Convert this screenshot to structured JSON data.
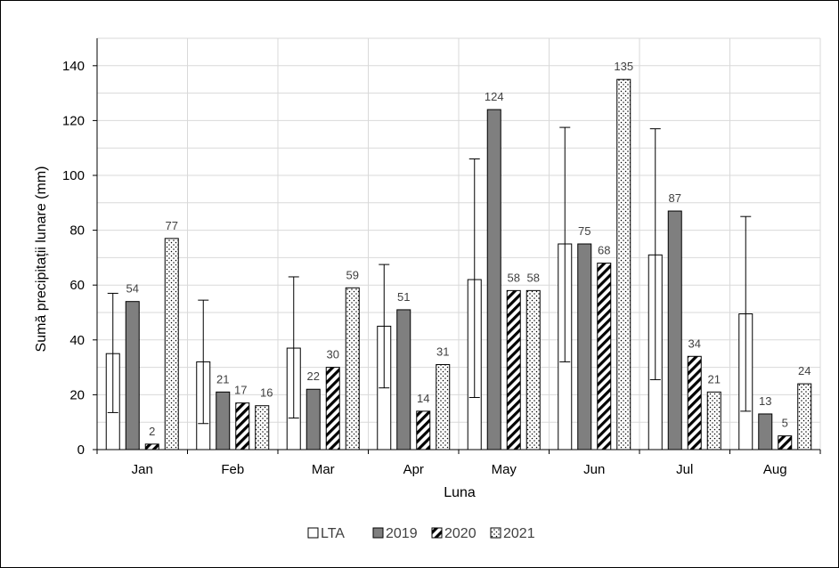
{
  "chart_data": {
    "type": "bar",
    "xlabel": "Luna",
    "ylabel": "Sumă precipitații lunare (mm)",
    "ylim": [
      0,
      150
    ],
    "yticks": [
      0,
      20,
      40,
      60,
      80,
      100,
      120,
      140
    ],
    "grid": true,
    "legend_position": "bottom",
    "categories": [
      "Jan",
      "Feb",
      "Mar",
      "Apr",
      "May",
      "Jun",
      "Jul",
      "Aug"
    ],
    "series": [
      {
        "name": "LTA",
        "values": [
          35,
          32,
          37,
          45,
          62,
          75,
          71,
          49.5
        ],
        "error_low": [
          13.5,
          9.5,
          11.5,
          22.5,
          19,
          32,
          25.5,
          14
        ],
        "error_high": [
          57,
          54.5,
          63,
          67.5,
          106,
          117.5,
          117,
          85
        ],
        "fill": "#ffffff",
        "pattern": "solid",
        "labels": [
          "",
          "",
          "",
          "",
          "",
          "",
          "",
          ""
        ]
      },
      {
        "name": "2019",
        "values": [
          54,
          21,
          22,
          51,
          124,
          75,
          87,
          13
        ],
        "fill": "#7f7f7f",
        "pattern": "solid",
        "labels": [
          "54",
          "21",
          "22",
          "51",
          "124",
          "75",
          "87",
          "13"
        ]
      },
      {
        "name": "2020",
        "values": [
          2,
          17,
          30,
          14,
          58,
          68,
          34,
          5
        ],
        "fill": "#ffffff",
        "pattern": "diagonal-stripes",
        "labels": [
          "2",
          "17",
          "30",
          "14",
          "58",
          "68",
          "34",
          "5"
        ]
      },
      {
        "name": "2021",
        "values": [
          77,
          16,
          59,
          31,
          58,
          135,
          21,
          24
        ],
        "fill": "#ffffff",
        "pattern": "dots",
        "labels": [
          "77",
          "16",
          "59",
          "31",
          "58",
          "135",
          "21",
          "24"
        ]
      }
    ],
    "colors": {
      "grid": "#d9d9d9",
      "axis": "#000000",
      "bar_edge": "#000000",
      "dark_bar": "#7f7f7f",
      "data_label": "#404040"
    }
  }
}
